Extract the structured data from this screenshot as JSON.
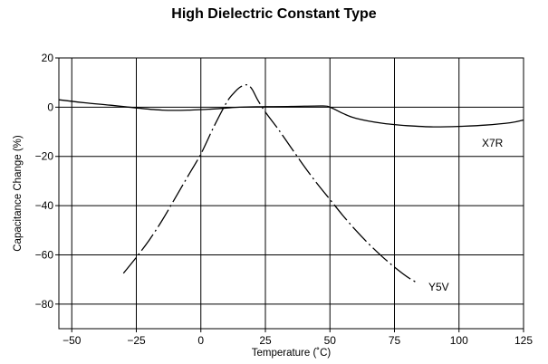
{
  "chart_data": {
    "type": "line",
    "title": "High Dielectric Constant Type",
    "xlabel": "Temperature (˚C)",
    "ylabel": "Capacitance Change (%)",
    "xlim": [
      -55,
      125
    ],
    "ylim": [
      -90,
      20
    ],
    "x_ticks": [
      -50,
      -25,
      0,
      25,
      50,
      75,
      100,
      125
    ],
    "x_tick_labels": [
      "−50",
      "−25",
      "0",
      "25",
      "50",
      "75",
      "100",
      "125"
    ],
    "y_ticks": [
      20,
      0,
      -20,
      -40,
      -60,
      -80
    ],
    "y_tick_labels": [
      "20",
      "0",
      "−20",
      "−40",
      "−60",
      "−80"
    ],
    "grid": true,
    "series": [
      {
        "name": "X7R",
        "style": "solid",
        "color": "#000000",
        "points": [
          [
            -55,
            3
          ],
          [
            -45,
            1.8
          ],
          [
            -35,
            0.8
          ],
          [
            -25,
            -0.3
          ],
          [
            -15,
            -1.2
          ],
          [
            -5,
            -1.2
          ],
          [
            5,
            -0.7
          ],
          [
            15,
            0
          ],
          [
            25,
            0.2
          ],
          [
            35,
            0.3
          ],
          [
            47,
            0.5
          ],
          [
            50,
            0
          ],
          [
            55,
            -2.5
          ],
          [
            60,
            -4.5
          ],
          [
            70,
            -6.5
          ],
          [
            80,
            -7.5
          ],
          [
            90,
            -8
          ],
          [
            100,
            -7.8
          ],
          [
            110,
            -7.3
          ],
          [
            120,
            -6.3
          ],
          [
            125,
            -5.2
          ]
        ]
      },
      {
        "name": "Y5V",
        "style": "dash-dot",
        "color": "#000000",
        "points": [
          [
            -30,
            -67.5
          ],
          [
            -25,
            -61
          ],
          [
            -20,
            -54
          ],
          [
            -15,
            -46
          ],
          [
            -10,
            -37
          ],
          [
            -5,
            -28
          ],
          [
            0,
            -19
          ],
          [
            5,
            -8
          ],
          [
            10,
            2
          ],
          [
            13,
            6
          ],
          [
            15,
            8
          ],
          [
            17,
            9
          ],
          [
            18.5,
            8.8
          ],
          [
            20,
            7
          ],
          [
            22,
            3
          ],
          [
            25,
            -2
          ],
          [
            30,
            -9
          ],
          [
            35,
            -16.5
          ],
          [
            40,
            -24
          ],
          [
            45,
            -31
          ],
          [
            50,
            -37.5
          ],
          [
            55,
            -44
          ],
          [
            60,
            -50
          ],
          [
            65,
            -55.5
          ],
          [
            70,
            -60.5
          ],
          [
            75,
            -65
          ],
          [
            80,
            -69
          ],
          [
            84,
            -71.5
          ]
        ]
      }
    ],
    "series_labels": [
      "X7R",
      "Y5V"
    ]
  }
}
